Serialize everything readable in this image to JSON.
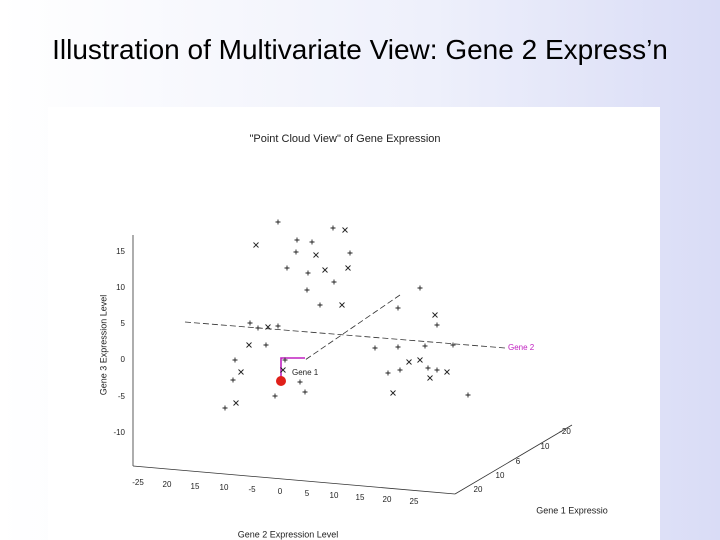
{
  "slide": {
    "title": "Illustration of Multivariate View: Gene 2 Express’n"
  },
  "figure": {
    "title": "\"Point Cloud View\" of Gene Expression",
    "z_axis": {
      "label": "Gene 3 Expression Level",
      "ticks": [
        "15",
        "10",
        "5",
        "0",
        "-5",
        "-10"
      ]
    },
    "y_axis": {
      "label": "Gene 2 Expression Level",
      "ticks": [
        "-25",
        "20",
        "15",
        "10",
        "-5",
        "0",
        "5",
        "10",
        "15",
        "20",
        "25"
      ]
    },
    "x_axis": {
      "label": "Gene 1 Expressio",
      "ticks": [
        "-20",
        "10",
        "6",
        "10",
        "20"
      ]
    },
    "annotations": {
      "gene2": "Gene 2",
      "gene1": "Gene 1"
    }
  }
}
